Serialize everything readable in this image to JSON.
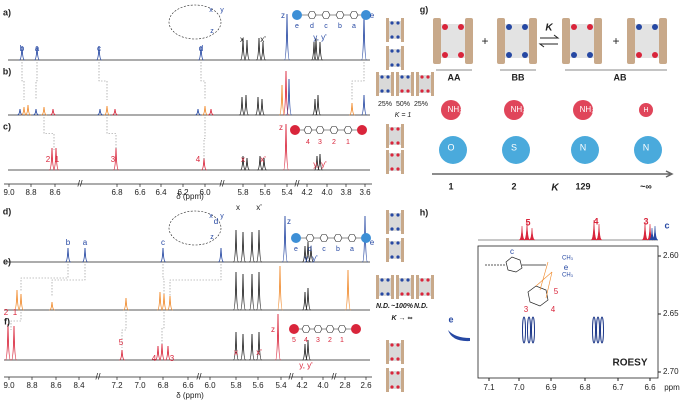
{
  "a": {
    "label": "a)",
    "peaks": [
      "b",
      "a",
      "c",
      "d",
      "x",
      "x'",
      "z",
      "e",
      "y, y'"
    ],
    "molecule": [
      "e",
      "d",
      "c",
      "b",
      "a"
    ],
    "inset": [
      "x",
      "y",
      "z"
    ]
  },
  "b": {
    "label": "b)",
    "ratios": [
      "25%",
      "50%",
      "25%"
    ],
    "K": "K = 1"
  },
  "c": {
    "label": "c)",
    "peaks": [
      "2",
      "1",
      "3",
      "4",
      "x",
      "x'",
      "z",
      "y, y'"
    ],
    "molecule": [
      "4",
      "3",
      "2",
      "1"
    ]
  },
  "top_axis": {
    "ticks": [
      "9.0",
      "8.8",
      "8.6",
      "6.8",
      "6.6",
      "6.4",
      "6.2",
      "6.0",
      "5.8",
      "5.6",
      "5.4",
      "4.2",
      "4.0",
      "3.8",
      "3.6"
    ],
    "label": "δ (ppm)"
  },
  "d": {
    "label": "d)",
    "peaks": [
      "b",
      "a",
      "c",
      "d",
      "x",
      "x'",
      "z",
      "e",
      "y, y'"
    ],
    "molecule": [
      "e",
      "d",
      "c",
      "b",
      "a"
    ],
    "inset": [
      "x",
      "y",
      "z"
    ]
  },
  "e": {
    "label": "e)",
    "ratios": [
      "N.D.",
      "~100%",
      "N.D."
    ],
    "K": "K → ∞"
  },
  "f": {
    "label": "f)",
    "peaks": [
      "2",
      "1",
      "5",
      "4",
      "3",
      "x",
      "x'",
      "z",
      "y, y'"
    ],
    "molecule": [
      "5",
      "4",
      "3",
      "2",
      "1"
    ]
  },
  "bottom_axis": {
    "ticks": [
      "9.0",
      "8.8",
      "8.6",
      "8.4",
      "7.2",
      "7.0",
      "6.8",
      "6.6",
      "6.0",
      "5.8",
      "5.6",
      "5.4",
      "4.2",
      "4.0",
      "2.8",
      "2.6"
    ],
    "label": "δ (ppm)"
  },
  "g": {
    "label": "g)",
    "dimers": [
      "AA",
      "BB",
      "AB"
    ],
    "plus": [
      "+",
      "+"
    ],
    "K": "K",
    "top_groups": [
      "NH₂",
      "NH₂",
      "NH₂",
      "H"
    ],
    "bottom_groups": [
      "O",
      "S",
      "N",
      "N"
    ],
    "constants": [
      "1",
      "2",
      "129",
      "~∞"
    ],
    "axis_label": "K"
  },
  "h": {
    "label": "h)",
    "top_peaks": [
      "5",
      "4",
      "3",
      "c"
    ],
    "left_peak": "e",
    "xticks": [
      "7.1",
      "7.0",
      "6.9",
      "6.8",
      "6.7",
      "6.6"
    ],
    "x_unit": "ppm",
    "yticks": [
      "2.60",
      "2.65",
      "2.70"
    ],
    "experiment": "ROESY",
    "inset": [
      "c",
      "e",
      "CH₃",
      "CH₃",
      "3",
      "4",
      "5"
    ]
  }
}
